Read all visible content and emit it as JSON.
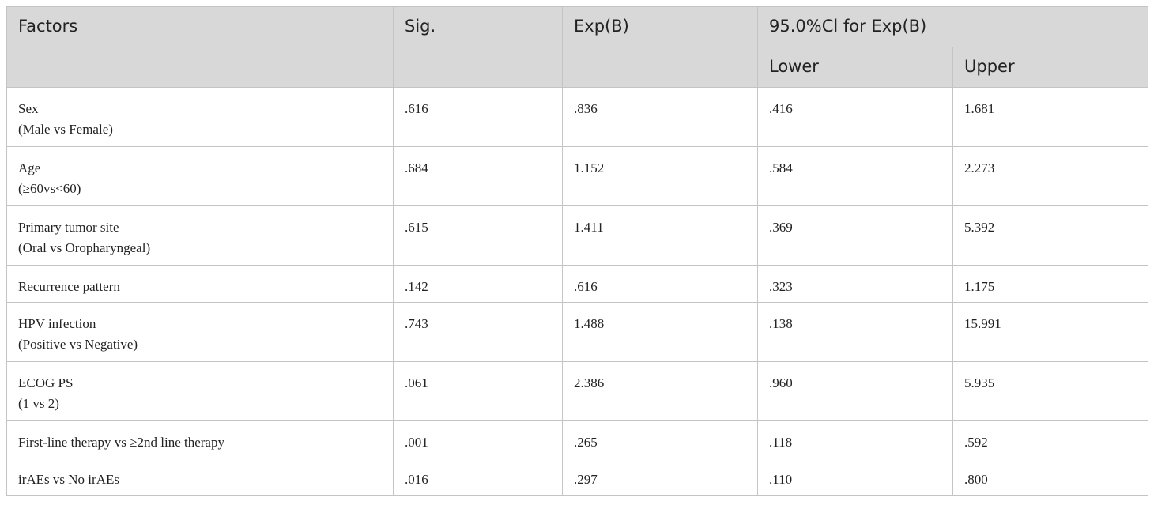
{
  "table": {
    "header": {
      "factors": "Factors",
      "sig": "Sig.",
      "expb": "Exp(B)",
      "ci": "95.0%Cl for Exp(B)",
      "lower": "Lower",
      "upper": "Upper"
    },
    "rows": [
      {
        "factor": [
          "Sex",
          "(Male vs Female)"
        ],
        "sig": ".616",
        "expb": ".836",
        "lower": ".416",
        "upper": "1.681"
      },
      {
        "factor": [
          "Age",
          "(≥60vs<60)"
        ],
        "sig": ".684",
        "expb": "1.152",
        "lower": ".584",
        "upper": "2.273"
      },
      {
        "factor": [
          "Primary tumor site",
          "(Oral vs Oropharyngeal)"
        ],
        "sig": ".615",
        "expb": "1.411",
        "lower": ".369",
        "upper": "5.392"
      },
      {
        "factor": [
          "Recurrence pattern"
        ],
        "sig": ".142",
        "expb": ".616",
        "lower": ".323",
        "upper": "1.175"
      },
      {
        "factor": [
          "HPV infection",
          "(Positive vs Negative)"
        ],
        "sig": ".743",
        "expb": "1.488",
        "lower": ".138",
        "upper": "15.991"
      },
      {
        "factor": [
          "ECOG PS",
          "(1 vs 2)"
        ],
        "sig": ".061",
        "expb": "2.386",
        "lower": ".960",
        "upper": "5.935"
      },
      {
        "factor": [
          "First-line therapy vs ≥2nd line therapy"
        ],
        "sig": ".001",
        "expb": ".265",
        "lower": ".118",
        "upper": ".592"
      },
      {
        "factor": [
          "irAEs vs No irAEs"
        ],
        "sig": ".016",
        "expb": ".297",
        "lower": ".110",
        "upper": ".800"
      }
    ]
  }
}
